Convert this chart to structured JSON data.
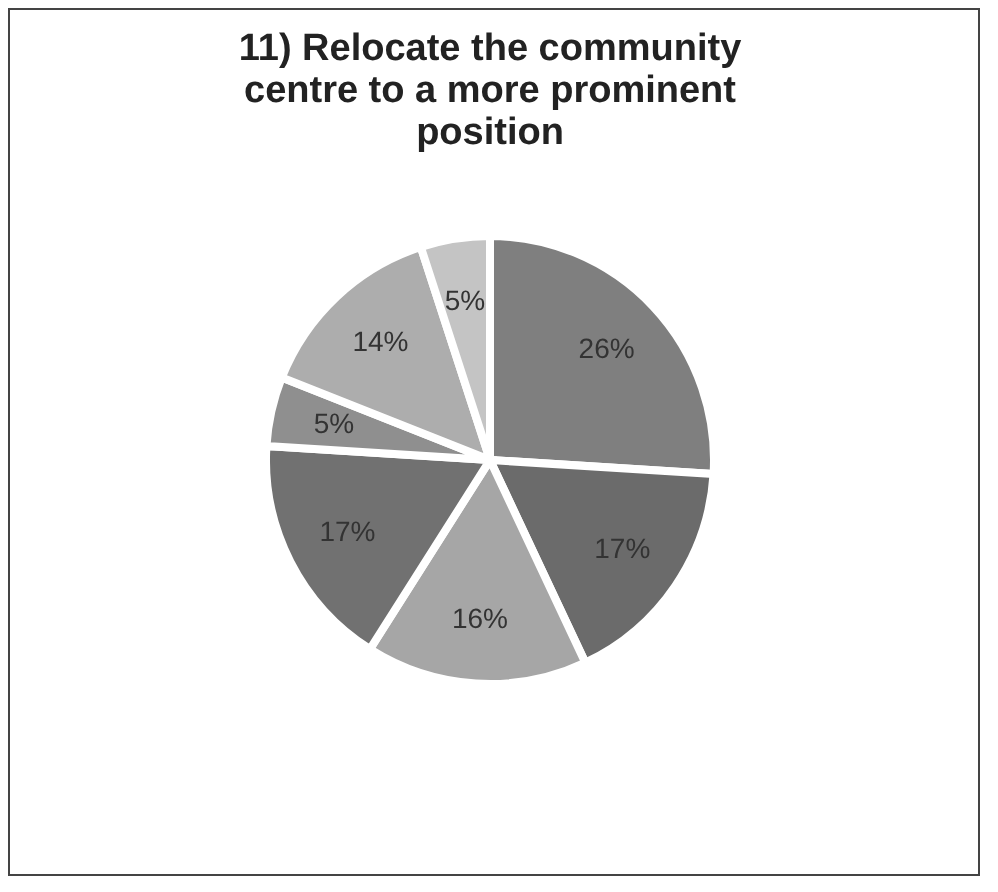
{
  "chart_data": {
    "type": "pie",
    "title": "11) Relocate the community centre to a more prominent position",
    "categories": [
      null,
      null,
      null,
      null,
      null,
      null,
      null
    ],
    "values": [
      26,
      17,
      16,
      17,
      5,
      14,
      5
    ],
    "value_labels": [
      "26%",
      "17%",
      "16%",
      "17%",
      "5%",
      "14%",
      "5%"
    ],
    "colors": [
      "#7f7f7f",
      "#6b6b6b",
      "#a6a6a6",
      "#717171",
      "#8f8f8f",
      "#adadad",
      "#c4c4c4"
    ],
    "legend": false
  }
}
